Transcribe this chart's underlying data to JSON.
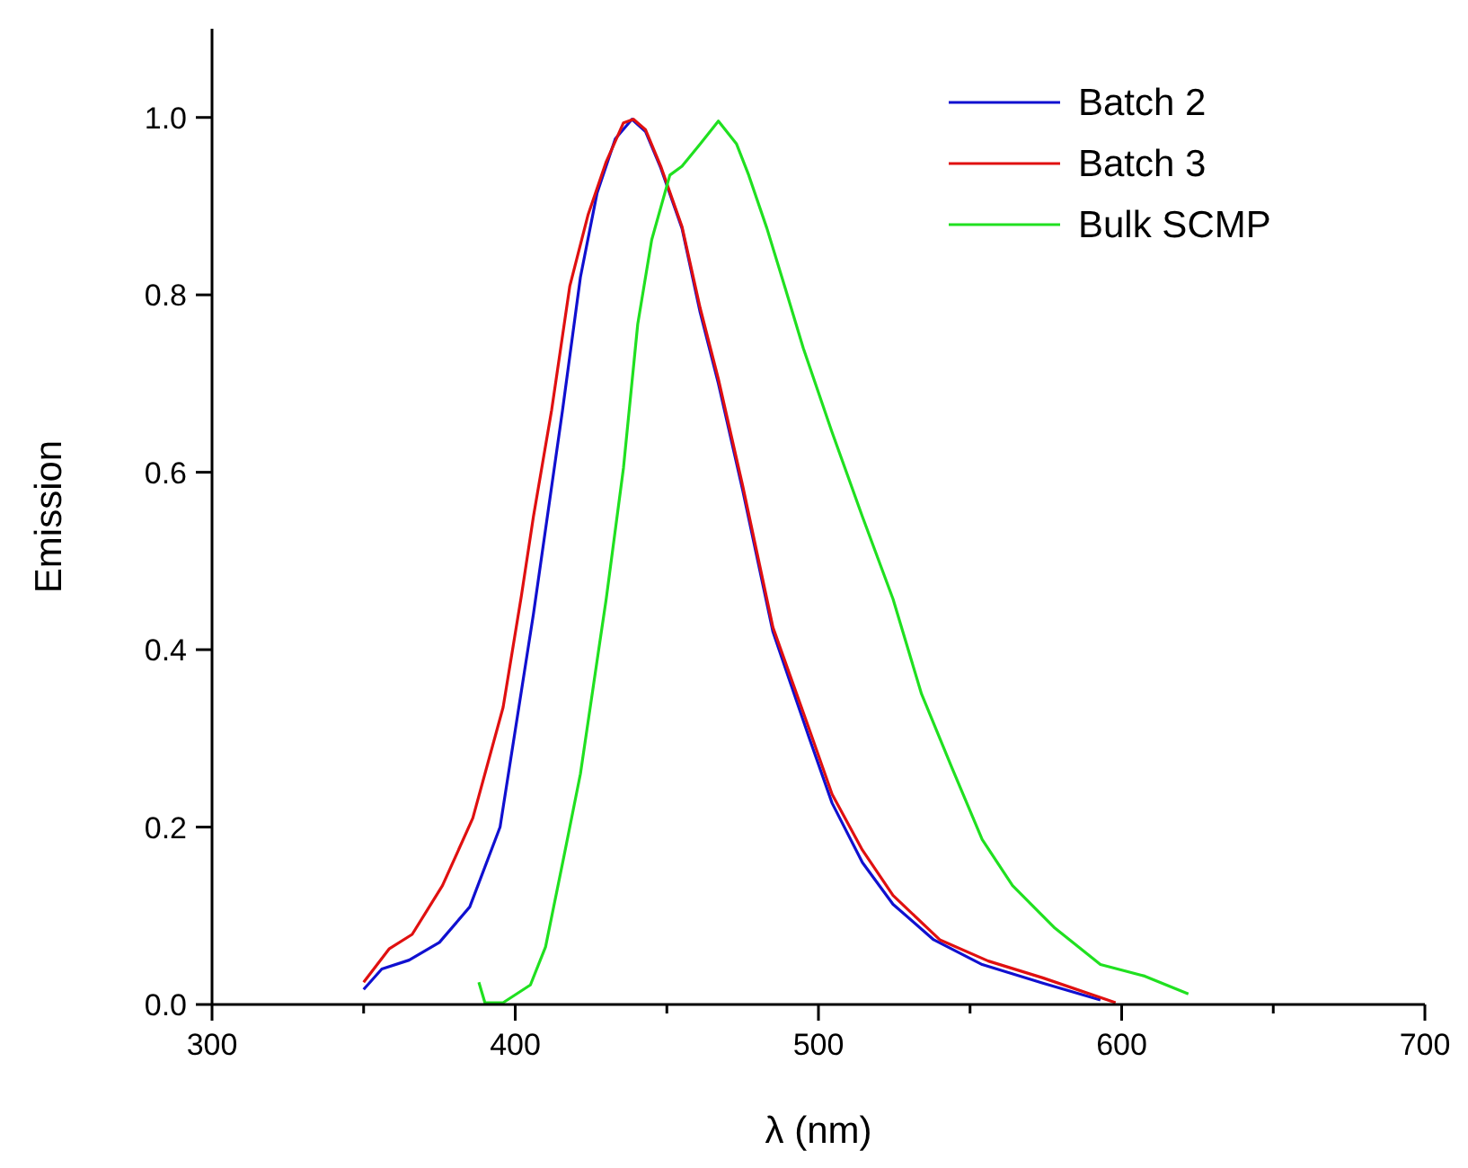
{
  "chart_data": {
    "type": "line",
    "xlabel": "λ (nm)",
    "ylabel": "Emission",
    "xlim": [
      300,
      700
    ],
    "ylim": [
      0,
      1.1
    ],
    "xticks": [
      300,
      {
        "value": 350,
        "label": null
      },
      400,
      {
        "value": 450,
        "label": null
      },
      500,
      {
        "value": 550,
        "label": null
      },
      600,
      {
        "value": 650,
        "label": null
      },
      700
    ],
    "yticks": [
      {
        "value": 0,
        "label": "0.0"
      },
      0.2,
      0.4,
      0.6,
      0.8,
      {
        "value": 1,
        "label": "1.0"
      }
    ],
    "legend": "top right",
    "grid": false,
    "marker": "none",
    "line_style": "solid",
    "series": [
      {
        "name": "Batch 2",
        "color": "#1010d0",
        "x": [
          350,
          356,
          365,
          375,
          385,
          395,
          406,
          415.6,
          421.5,
          427,
          433,
          438.5,
          443,
          448,
          455,
          461,
          467,
          475,
          485,
          497,
          504.5,
          514.5,
          524.6,
          538,
          554,
          574,
          593
        ],
        "values": [
          0.017,
          0.04,
          0.05,
          0.07,
          0.11,
          0.2,
          0.44,
          0.67,
          0.82,
          0.915,
          0.976,
          0.998,
          0.984,
          0.943,
          0.875,
          0.78,
          0.7,
          0.58,
          0.42,
          0.3,
          0.227,
          0.16,
          0.113,
          0.073,
          0.045,
          0.024,
          0.005
        ]
      },
      {
        "name": "Batch 3",
        "color": "#e01010",
        "x": [
          350,
          358.5,
          366,
          376,
          386,
          396,
          402,
          406,
          412,
          418,
          424,
          430,
          435.7,
          439,
          443,
          448,
          455,
          461,
          467,
          475,
          485,
          497,
          504.5,
          514.5,
          524.6,
          540,
          556,
          574,
          598
        ],
        "values": [
          0.025,
          0.063,
          0.079,
          0.134,
          0.21,
          0.335,
          0.46,
          0.55,
          0.67,
          0.81,
          0.89,
          0.95,
          0.994,
          0.998,
          0.986,
          0.945,
          0.877,
          0.785,
          0.705,
          0.585,
          0.425,
          0.31,
          0.237,
          0.174,
          0.123,
          0.073,
          0.049,
          0.03,
          0.002
        ]
      },
      {
        "name": "Bulk SCMP",
        "color": "#20e020",
        "x": [
          388,
          390,
          396,
          405,
          410,
          416,
          421.5,
          427.4,
          430,
          435.7,
          440.4,
          445,
          451,
          455,
          461,
          467,
          473,
          477,
          483,
          489,
          495,
          504.4,
          514.5,
          524.6,
          534,
          544,
          554,
          564,
          578,
          593,
          607.6,
          622
        ],
        "values": [
          0.025,
          0.002,
          0.002,
          0.022,
          0.065,
          0.166,
          0.26,
          0.397,
          0.457,
          0.605,
          0.767,
          0.862,
          0.935,
          0.945,
          0.97,
          0.996,
          0.97,
          0.935,
          0.875,
          0.808,
          0.74,
          0.646,
          0.55,
          0.457,
          0.35,
          0.267,
          0.186,
          0.134,
          0.086,
          0.045,
          0.032,
          0.012
        ]
      }
    ]
  }
}
